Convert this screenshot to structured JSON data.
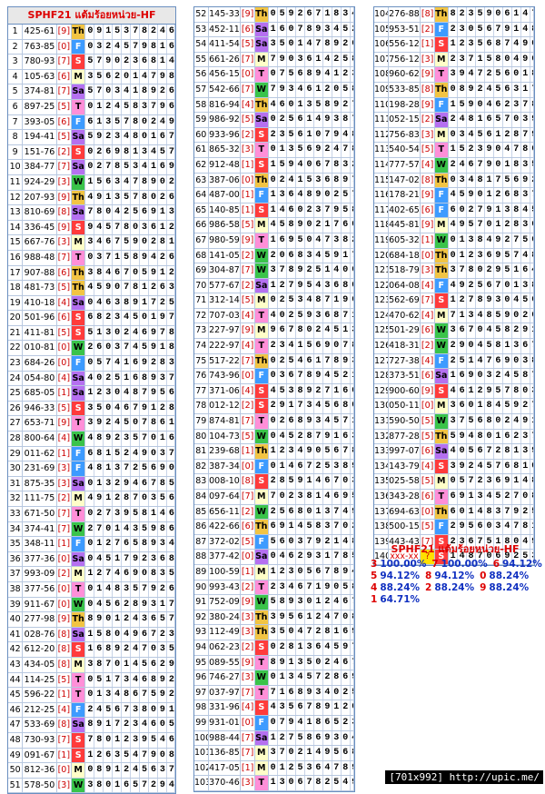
{
  "header": {
    "title": "SPHF21 แต้มร้อยหน่วย-HF"
  },
  "rows": [
    [
      1,
      "425-61",
      "[9]",
      "Th",
      "0915378246"
    ],
    [
      2,
      "763-85",
      "[0]",
      "F",
      "0324579816"
    ],
    [
      3,
      "780-93",
      "[7]",
      "S",
      "5790236814"
    ],
    [
      4,
      "105-63",
      "[6]",
      "M",
      "3562014798"
    ],
    [
      5,
      "374-81",
      "[7]",
      "Sa",
      "5703418926"
    ],
    [
      6,
      "897-25",
      "[5]",
      "T",
      "0124583796"
    ],
    [
      7,
      "393-05",
      "[6]",
      "F",
      "6135780249"
    ],
    [
      8,
      "194-41",
      "[5]",
      "Sa",
      "5923480167"
    ],
    [
      9,
      "151-76",
      "[2]",
      "S",
      "0269813457"
    ],
    [
      10,
      "384-77",
      "[7]",
      "Sa",
      "0278534169"
    ],
    [
      11,
      "924-29",
      "[3]",
      "W",
      "1563478902"
    ],
    [
      12,
      "207-93",
      "[9]",
      "Th",
      "4913578026"
    ],
    [
      13,
      "810-69",
      "[8]",
      "Sa",
      "7804256913"
    ],
    [
      14,
      "336-45",
      "[9]",
      "S",
      "9457803612"
    ],
    [
      15,
      "667-76",
      "[3]",
      "M",
      "3467590281"
    ],
    [
      16,
      "988-48",
      "[7]",
      "T",
      "0371589426"
    ],
    [
      17,
      "907-88",
      "[6]",
      "Th",
      "3846705912"
    ],
    [
      18,
      "481-73",
      "[5]",
      "Th",
      "4590781263"
    ],
    [
      19,
      "410-18",
      "[4]",
      "Sa",
      "0463891725"
    ],
    [
      20,
      "501-96",
      "[6]",
      "S",
      "6823450197"
    ],
    [
      21,
      "411-81",
      "[5]",
      "S",
      "5130246978"
    ],
    [
      22,
      "010-81",
      "[0]",
      "W",
      "2603745918"
    ],
    [
      23,
      "684-26",
      "[0]",
      "F",
      "0574169283"
    ],
    [
      24,
      "054-80",
      "[4]",
      "Sa",
      "4025168937"
    ],
    [
      25,
      "685-05",
      "[1]",
      "Sa",
      "1230487956"
    ],
    [
      26,
      "946-33",
      "[5]",
      "S",
      "3504679128"
    ],
    [
      27,
      "653-71",
      "[9]",
      "T",
      "3924507861"
    ],
    [
      28,
      "800-64",
      "[4]",
      "W",
      "4892357016"
    ],
    [
      29,
      "011-62",
      "[1]",
      "F",
      "6815249037"
    ],
    [
      30,
      "231-69",
      "[3]",
      "F",
      "4813725690"
    ],
    [
      31,
      "875-35",
      "[3]",
      "Sa",
      "0132946785"
    ],
    [
      32,
      "111-75",
      "[2]",
      "M",
      "4912870356"
    ],
    [
      33,
      "671-50",
      "[7]",
      "T",
      "0273958146"
    ],
    [
      34,
      "374-41",
      "[7]",
      "W",
      "2701435986"
    ],
    [
      35,
      "348-11",
      "[1]",
      "F",
      "0127658934"
    ],
    [
      36,
      "377-36",
      "[0]",
      "Sa",
      "0451792368"
    ],
    [
      37,
      "993-09",
      "[2]",
      "M",
      "1274690835"
    ],
    [
      38,
      "377-56",
      "[0]",
      "T",
      "0148357926"
    ],
    [
      39,
      "911-67",
      "[0]",
      "W",
      "0456289317"
    ],
    [
      40,
      "277-98",
      "[9]",
      "Th",
      "8901243657"
    ],
    [
      41,
      "028-76",
      "[8]",
      "Sa",
      "1580496723"
    ],
    [
      42,
      "612-20",
      "[8]",
      "S",
      "1689247035"
    ],
    [
      43,
      "434-05",
      "[8]",
      "M",
      "3870145629"
    ],
    [
      44,
      "114-25",
      "[5]",
      "T",
      "0517346892"
    ],
    [
      45,
      "596-22",
      "[1]",
      "T",
      "0134867592"
    ],
    [
      46,
      "212-25",
      "[4]",
      "F",
      "2456738091"
    ],
    [
      47,
      "533-69",
      "[8]",
      "Sa",
      "8917234605"
    ],
    [
      48,
      "730-93",
      "[7]",
      "S",
      "7801239546"
    ],
    [
      49,
      "091-67",
      "[1]",
      "S",
      "1263547908"
    ],
    [
      50,
      "812-36",
      "[0]",
      "M",
      "0891245637"
    ],
    [
      51,
      "578-50",
      "[3]",
      "W",
      "3801657294"
    ],
    [
      52,
      "145-33",
      "[9]",
      "Th",
      "0592671834"
    ],
    [
      53,
      "452-11",
      "[6]",
      "Sa",
      "1607893452"
    ],
    [
      54,
      "411-54",
      "[5]",
      "Sa",
      "3501478926"
    ],
    [
      55,
      "661-26",
      "[7]",
      "M",
      "7903614258"
    ],
    [
      56,
      "456-15",
      "[0]",
      "T",
      "0756894123"
    ],
    [
      57,
      "542-66",
      "[7]",
      "W",
      "7934612058"
    ],
    [
      58,
      "816-94",
      "[4]",
      "Th",
      "4601358927"
    ],
    [
      59,
      "986-92",
      "[5]",
      "Sa",
      "0256149387"
    ],
    [
      60,
      "933-96",
      "[2]",
      "S",
      "2356107948"
    ],
    [
      61,
      "865-32",
      "[3]",
      "T",
      "0135692478"
    ],
    [
      62,
      "912-48",
      "[1]",
      "S",
      "1594067832"
    ],
    [
      63,
      "387-06",
      "[0]",
      "Th",
      "0241536897"
    ],
    [
      64,
      "487-00",
      "[1]",
      "F",
      "1364890257"
    ],
    [
      65,
      "140-85",
      "[1]",
      "S",
      "1460237958"
    ],
    [
      66,
      "986-58",
      "[5]",
      "M",
      "4589021760"
    ],
    [
      67,
      "980-59",
      "[9]",
      "T",
      "1695047382"
    ],
    [
      68,
      "141-05",
      "[2]",
      "W",
      "2068345917"
    ],
    [
      69,
      "304-87",
      "[7]",
      "W",
      "3789251406"
    ],
    [
      70,
      "577-67",
      "[2]",
      "Sa",
      "1279543680"
    ],
    [
      71,
      "312-14",
      "[5]",
      "M",
      "0253487196"
    ],
    [
      72,
      "707-03",
      "[4]",
      "T",
      "4025936871"
    ],
    [
      73,
      "227-97",
      "[9]",
      "M",
      "9678024513"
    ],
    [
      74,
      "222-97",
      "[4]",
      "T",
      "2341569078"
    ],
    [
      75,
      "517-22",
      "[7]",
      "Th",
      "0254617893"
    ],
    [
      76,
      "743-96",
      "[0]",
      "F",
      "0367894521"
    ],
    [
      77,
      "371-06",
      "[4]",
      "S",
      "4538927160"
    ],
    [
      78,
      "012-12",
      "[2]",
      "S",
      "2917345680"
    ],
    [
      79,
      "874-81",
      "[7]",
      "T",
      "0268934571"
    ],
    [
      80,
      "104-73",
      "[5]",
      "W",
      "0452879163"
    ],
    [
      81,
      "239-68",
      "[1]",
      "Th",
      "1234905678"
    ],
    [
      82,
      "387-34",
      "[0]",
      "F",
      "0146725389"
    ],
    [
      83,
      "008-10",
      "[8]",
      "S",
      "2859146703"
    ],
    [
      84,
      "097-64",
      "[7]",
      "M",
      "7023814695"
    ],
    [
      85,
      "656-11",
      "[2]",
      "W",
      "2568013749"
    ],
    [
      86,
      "422-66",
      "[6]",
      "Th",
      "6914583702"
    ],
    [
      87,
      "372-02",
      "[5]",
      "F",
      "5603792148"
    ],
    [
      88,
      "377-42",
      "[0]",
      "Sa",
      "0462931785"
    ],
    [
      89,
      "100-59",
      "[1]",
      "M",
      "1230567894"
    ],
    [
      90,
      "993-43",
      "[2]",
      "T",
      "2346719058"
    ],
    [
      91,
      "752-09",
      "[9]",
      "W",
      "5893012467"
    ],
    [
      92,
      "380-24",
      "[3]",
      "Th",
      "3956124708"
    ],
    [
      93,
      "112-49",
      "[3]",
      "Th",
      "3504728169"
    ],
    [
      94,
      "062-23",
      "[2]",
      "S",
      "0281364597"
    ],
    [
      95,
      "089-55",
      "[9]",
      "T",
      "8913502467"
    ],
    [
      96,
      "746-27",
      "[3]",
      "W",
      "0134572869"
    ],
    [
      97,
      "037-97",
      "[7]",
      "T",
      "7168934025"
    ],
    [
      98,
      "331-96",
      "[4]",
      "S",
      "4356789120"
    ],
    [
      99,
      "931-01",
      "[0]",
      "F",
      "0794186523"
    ],
    [
      100,
      "988-44",
      "[7]",
      "Sa",
      "1275869304"
    ],
    [
      101,
      "136-85",
      "[7]",
      "M",
      "3702149568"
    ],
    [
      102,
      "417-05",
      "[1]",
      "M",
      "0125364789"
    ],
    [
      103,
      "370-46",
      "[3]",
      "T",
      "1306782549"
    ],
    [
      104,
      "276-88",
      "[8]",
      "Th",
      "8235906147"
    ],
    [
      105,
      "953-51",
      "[2]",
      "F",
      "2305679148"
    ],
    [
      106,
      "556-12",
      "[1]",
      "S",
      "1235687490"
    ],
    [
      107,
      "756-12",
      "[3]",
      "M",
      "2371580496"
    ],
    [
      108,
      "960-62",
      "[9]",
      "T",
      "3947256018"
    ],
    [
      109,
      "533-85",
      "[8]",
      "Th",
      "0892456317"
    ],
    [
      110,
      "198-28",
      "[9]",
      "F",
      "1590462378"
    ],
    [
      111,
      "052-15",
      "[2]",
      "Sa",
      "2481657039"
    ],
    [
      112,
      "756-83",
      "[3]",
      "M",
      "0345612879"
    ],
    [
      113,
      "540-54",
      "[5]",
      "T",
      "1523904786"
    ],
    [
      114,
      "777-57",
      "[4]",
      "W",
      "2467901835"
    ],
    [
      115,
      "147-02",
      "[8]",
      "Th",
      "0348175692"
    ],
    [
      116,
      "178-21",
      "[9]",
      "F",
      "4590126837"
    ],
    [
      117,
      "402-65",
      "[6]",
      "F",
      "6027913845"
    ],
    [
      118,
      "445-81",
      "[9]",
      "M",
      "4957012836"
    ],
    [
      119,
      "605-32",
      "[1]",
      "W",
      "0138492756"
    ],
    [
      120,
      "684-18",
      "[0]",
      "Th",
      "0123695748"
    ],
    [
      121,
      "518-79",
      "[3]",
      "Th",
      "3780295164"
    ],
    [
      122,
      "064-08",
      "[4]",
      "F",
      "4925670138"
    ],
    [
      123,
      "562-69",
      "[7]",
      "S",
      "1278930456"
    ],
    [
      124,
      "470-62",
      "[4]",
      "M",
      "7134859026"
    ],
    [
      125,
      "501-29",
      "[6]",
      "W",
      "3670458291"
    ],
    [
      126,
      "418-31",
      "[2]",
      "W",
      "2904581367"
    ],
    [
      127,
      "727-38",
      "[4]",
      "F",
      "2514769038"
    ],
    [
      128,
      "373-51",
      "[6]",
      "Sa",
      "1690324587"
    ],
    [
      129,
      "900-60",
      "[9]",
      "S",
      "4612957803"
    ],
    [
      130,
      "050-11",
      "[0]",
      "M",
      "3601845927"
    ],
    [
      131,
      "590-50",
      "[5]",
      "W",
      "3756802491"
    ],
    [
      132,
      "877-28",
      "[5]",
      "Th",
      "5948016237"
    ],
    [
      133,
      "997-07",
      "[6]",
      "Sa",
      "4056728139"
    ],
    [
      134,
      "143-79",
      "[4]",
      "S",
      "3924576810"
    ],
    [
      135,
      "025-58",
      "[5]",
      "M",
      "0572369148"
    ],
    [
      136,
      "343-28",
      "[6]",
      "T",
      "6913452708"
    ],
    [
      137,
      "694-63",
      "[0]",
      "Th",
      "6014837925"
    ],
    [
      138,
      "500-15",
      "[5]",
      "F",
      "2956034781"
    ],
    [
      139,
      "443-43",
      "[7]",
      "S",
      "2367518049"
    ],
    [
      140,
      "xxx-xx",
      "?",
      "S",
      "1487069253"
    ]
  ],
  "stats": {
    "title": "SPHF21 แต้มร้อยหน่วย-HF",
    "lines": [
      [
        [
          "3",
          "100.00%"
        ],
        [
          "7",
          "100.00%"
        ],
        [
          "6",
          "94.12%"
        ]
      ],
      [
        [
          "5",
          "94.12%"
        ],
        [
          "8",
          "94.12%"
        ],
        [
          "0",
          "88.24%"
        ]
      ],
      [
        [
          "4",
          "88.24%"
        ],
        [
          "2",
          "88.24%"
        ],
        [
          "9",
          "88.24%"
        ]
      ],
      [
        [
          "1",
          "64.71%"
        ]
      ]
    ]
  },
  "footer": {
    "text": "[701x992] http://upic.me/"
  }
}
